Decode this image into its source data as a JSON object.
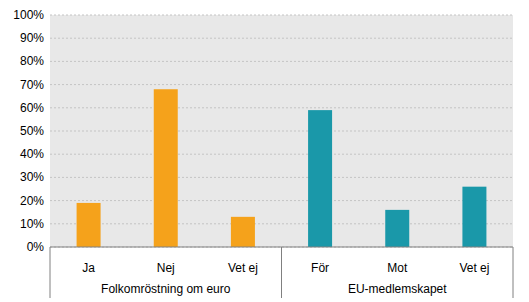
{
  "chart_data": {
    "type": "bar",
    "categories": [
      "Ja",
      "Nej",
      "Vet ej",
      "För",
      "Mot",
      "Vet ej"
    ],
    "values": [
      19,
      68,
      13,
      59,
      16,
      26
    ],
    "colors": [
      "#f5a21b",
      "#f5a21b",
      "#f5a21b",
      "#1a98a9",
      "#1a98a9",
      "#1a98a9"
    ],
    "groups": [
      {
        "label": "Folkomröstning om euro",
        "size": 3
      },
      {
        "label": "EU-medlemskapet",
        "size": 3
      }
    ],
    "ylim": [
      0,
      100
    ],
    "yticks": [
      {
        "value": 0,
        "label": "0%"
      },
      {
        "value": 10,
        "label": "10%"
      },
      {
        "value": 20,
        "label": "20%"
      },
      {
        "value": 30,
        "label": "30%"
      },
      {
        "value": 40,
        "label": "40%"
      },
      {
        "value": 50,
        "label": "50%"
      },
      {
        "value": 60,
        "label": "60%"
      },
      {
        "value": 70,
        "label": "70%"
      },
      {
        "value": 80,
        "label": "80%"
      },
      {
        "value": 90,
        "label": "90%"
      },
      {
        "value": 100,
        "label": "100%"
      }
    ],
    "grid": true
  }
}
